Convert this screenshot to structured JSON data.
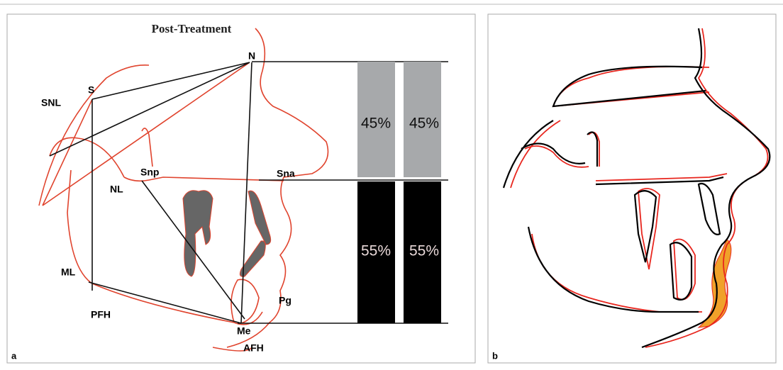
{
  "panel_a": {
    "title": "Post-Treatment",
    "label": "a",
    "landmarks": {
      "N": "N",
      "S": "S",
      "SNL": "SNL",
      "Snp": "Snp",
      "Sna": "Sna",
      "NL": "NL",
      "ML": "ML",
      "PFH": "PFH",
      "Pg": "Pg",
      "Me": "Me",
      "AFH": "AFH"
    },
    "bars": [
      {
        "upper": "45%",
        "lower": "55%"
      },
      {
        "upper": "45%",
        "lower": "55%"
      }
    ]
  },
  "panel_b": {
    "label": "b"
  }
}
